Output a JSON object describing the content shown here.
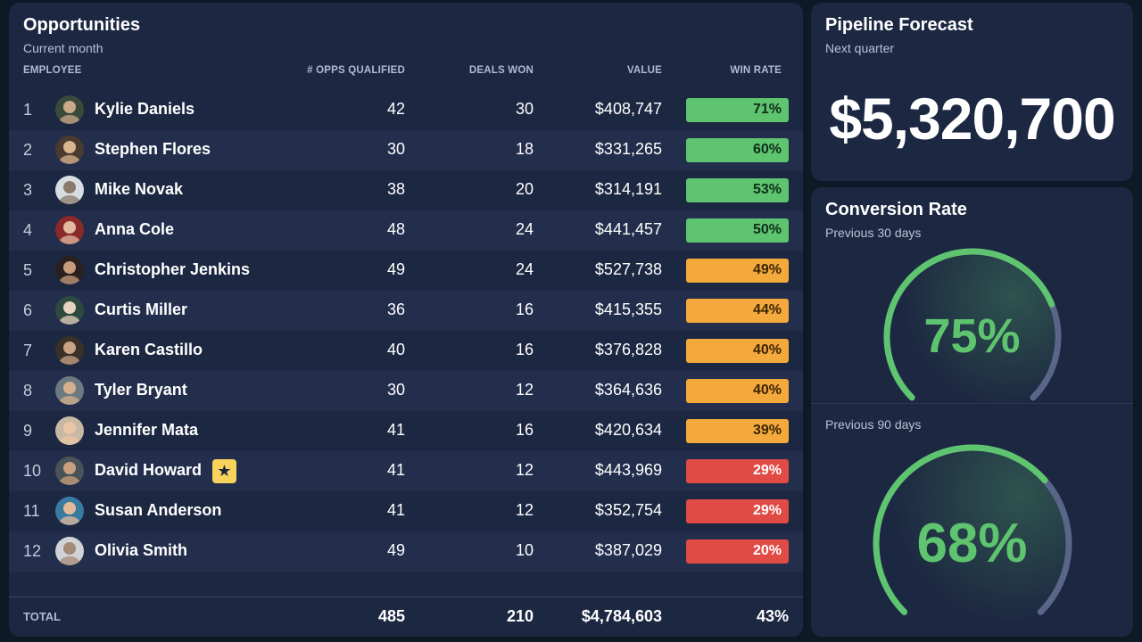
{
  "opportunities": {
    "title": "Opportunities",
    "subtitle": "Current month",
    "columns": {
      "employee": "EMPLOYEE",
      "opps": "# OPPS QUALIFIED",
      "won": "DEALS WON",
      "value": "VALUE",
      "win_rate": "WIN RATE"
    },
    "rows": [
      {
        "rank": "1",
        "name": "Kylie Daniels",
        "opps": "42",
        "won": "30",
        "value": "$408,747",
        "win_rate": "71%",
        "win_rate_pct": 71
      },
      {
        "rank": "2",
        "name": "Stephen Flores",
        "opps": "30",
        "won": "18",
        "value": "$331,265",
        "win_rate": "60%",
        "win_rate_pct": 60
      },
      {
        "rank": "3",
        "name": "Mike Novak",
        "opps": "38",
        "won": "20",
        "value": "$314,191",
        "win_rate": "53%",
        "win_rate_pct": 53
      },
      {
        "rank": "4",
        "name": "Anna Cole",
        "opps": "48",
        "won": "24",
        "value": "$441,457",
        "win_rate": "50%",
        "win_rate_pct": 50
      },
      {
        "rank": "5",
        "name": "Christopher Jenkins",
        "opps": "49",
        "won": "24",
        "value": "$527,738",
        "win_rate": "49%",
        "win_rate_pct": 49
      },
      {
        "rank": "6",
        "name": "Curtis Miller",
        "opps": "36",
        "won": "16",
        "value": "$415,355",
        "win_rate": "44%",
        "win_rate_pct": 44
      },
      {
        "rank": "7",
        "name": "Karen Castillo",
        "opps": "40",
        "won": "16",
        "value": "$376,828",
        "win_rate": "40%",
        "win_rate_pct": 40
      },
      {
        "rank": "8",
        "name": "Tyler Bryant",
        "opps": "30",
        "won": "12",
        "value": "$364,636",
        "win_rate": "40%",
        "win_rate_pct": 40
      },
      {
        "rank": "9",
        "name": "Jennifer Mata",
        "opps": "41",
        "won": "16",
        "value": "$420,634",
        "win_rate": "39%",
        "win_rate_pct": 39
      },
      {
        "rank": "10",
        "name": "David Howard",
        "opps": "41",
        "won": "12",
        "value": "$443,969",
        "win_rate": "29%",
        "win_rate_pct": 29
      },
      {
        "rank": "11",
        "name": "Susan Anderson",
        "opps": "41",
        "won": "12",
        "value": "$352,754",
        "win_rate": "29%",
        "win_rate_pct": 29
      },
      {
        "rank": "12",
        "name": "Olivia Smith",
        "opps": "49",
        "won": "10",
        "value": "$387,029",
        "win_rate": "20%",
        "win_rate_pct": 20
      }
    ],
    "star_icon": "★",
    "total": {
      "label": "TOTAL",
      "opps": "485",
      "won": "210",
      "value": "$4,784,603",
      "win_rate": "43%"
    }
  },
  "forecast": {
    "title": "Pipeline Forecast",
    "subtitle": "Next quarter",
    "amount": "$5,320,700"
  },
  "conversion": {
    "title": "Conversion Rate",
    "gauge_30": {
      "label": "Previous 30 days",
      "value": "75%",
      "pct": 75
    },
    "gauge_90": {
      "label": "Previous 90 days",
      "value": "68%",
      "pct": 68
    }
  },
  "colors": {
    "good": "#5ec46f",
    "warn": "#f3a93b",
    "bad": "#e14b45",
    "track": "#5a6687"
  }
}
